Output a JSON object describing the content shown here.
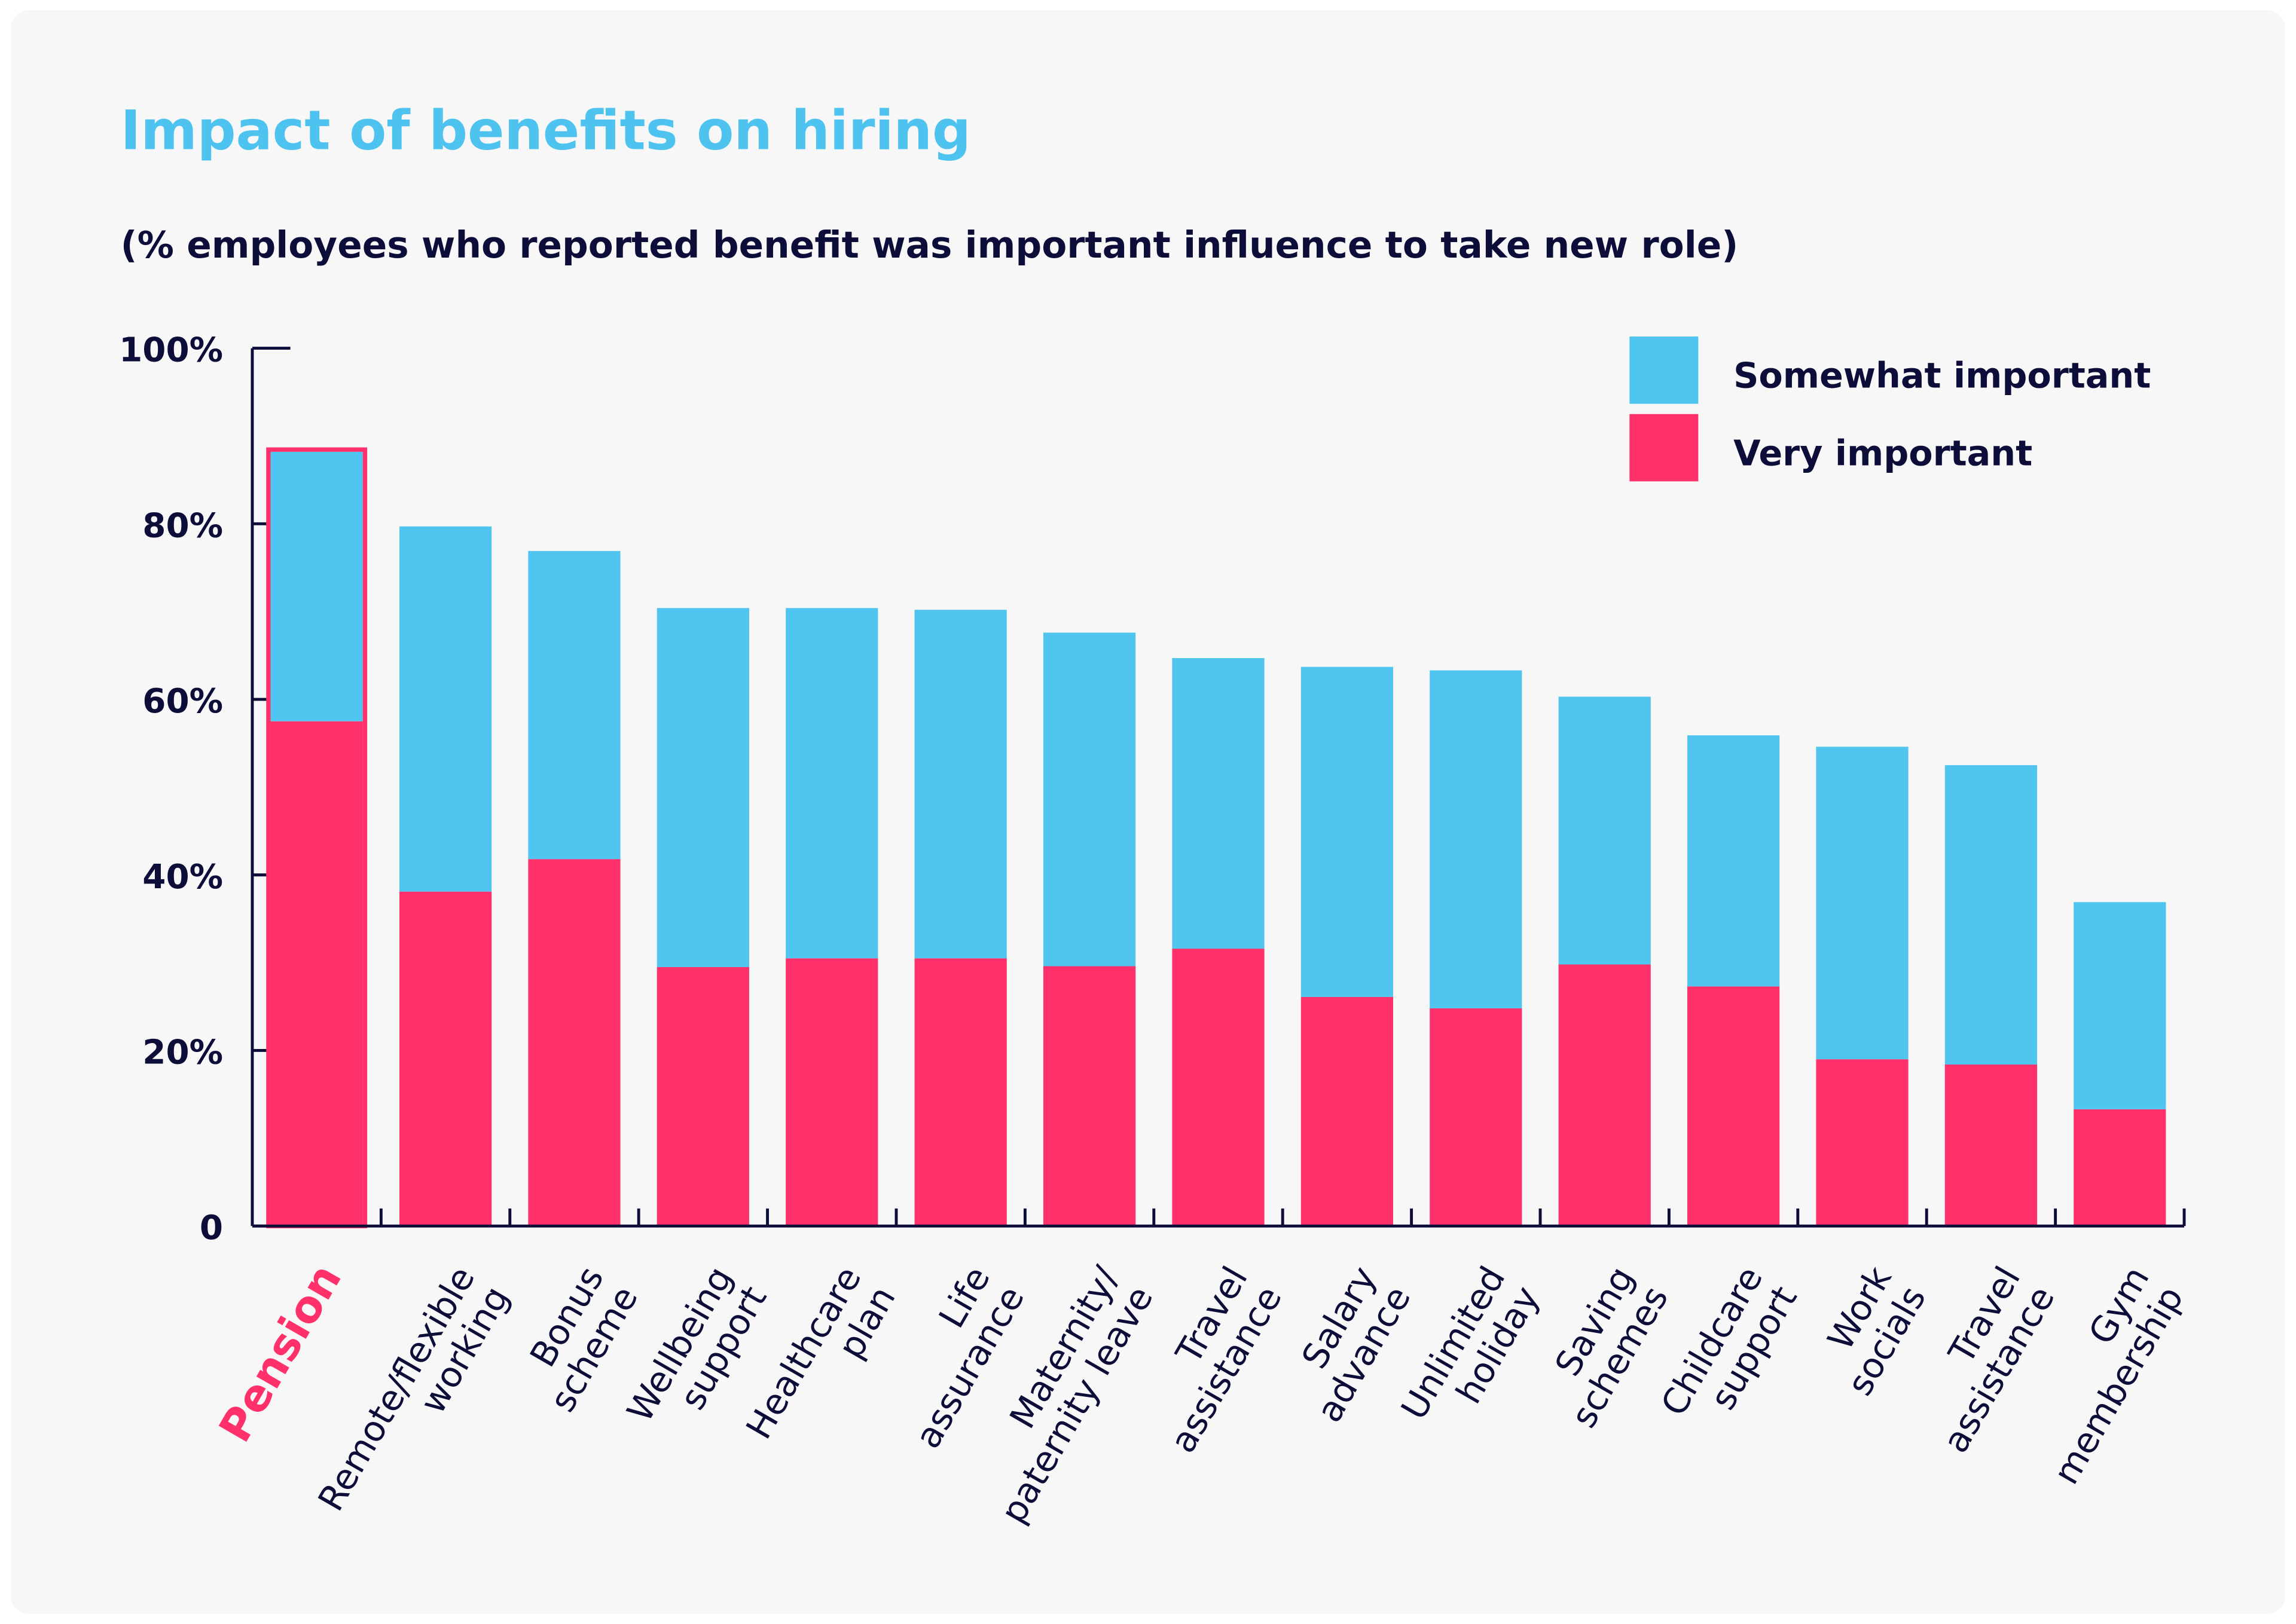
{
  "title": "Impact of benefits on hiring",
  "subtitle": "(% employees who reported benefit was important influence to take new role)",
  "colors": {
    "somewhat": "#4fc5ef",
    "very": "#ff306a",
    "title": "#4fc3ef",
    "text": "#0d0d3a",
    "background": "#f7f7f7",
    "highlight": "#ff306a"
  },
  "chart_data": {
    "type": "bar",
    "stacked": true,
    "title": "Impact of benefits on hiring",
    "subtitle": "(% employees who reported benefit was important influence to take new role)",
    "xlabel": "",
    "ylabel": "",
    "ylim": [
      0,
      100
    ],
    "yticks": [
      "0",
      "20%",
      "40%",
      "60%",
      "80%",
      "100%"
    ],
    "ytick_values": [
      0,
      20,
      40,
      60,
      80,
      100
    ],
    "grid": false,
    "legend_position": "top-right",
    "highlighted_category": "Pension",
    "categories": [
      [
        "Pension"
      ],
      [
        "Remote/flexible",
        "working"
      ],
      [
        "Bonus",
        "scheme"
      ],
      [
        "Wellbeing",
        "support"
      ],
      [
        "Healthcare",
        "plan"
      ],
      [
        "Life",
        "assurance"
      ],
      [
        "Maternity/",
        "paternity leave"
      ],
      [
        "Travel",
        "assistance"
      ],
      [
        "Salary",
        "advance"
      ],
      [
        "Unlimited",
        "holiday"
      ],
      [
        "Saving",
        "schemes"
      ],
      [
        "Childcare",
        "support"
      ],
      [
        "Work",
        "socials"
      ],
      [
        "Travel",
        "assistance"
      ],
      [
        "Gym",
        "membership"
      ]
    ],
    "series": [
      {
        "name": "Very important",
        "color": "#ff306a",
        "values": [
          57.5,
          38.1,
          41.8,
          29.5,
          30.5,
          30.5,
          29.6,
          31.6,
          26.1,
          24.8,
          29.8,
          27.3,
          19.0,
          18.4,
          13.3
        ]
      },
      {
        "name": "Somewhat important",
        "color": "#4fc5ef",
        "values": [
          30.7,
          41.6,
          35.1,
          40.9,
          39.9,
          39.7,
          38.0,
          33.1,
          37.6,
          38.5,
          30.5,
          28.6,
          35.6,
          34.1,
          23.6
        ]
      }
    ],
    "legend": [
      "Somewhat important",
      "Very important"
    ]
  }
}
